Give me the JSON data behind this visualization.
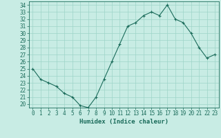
{
  "x": [
    0,
    1,
    2,
    3,
    4,
    5,
    6,
    7,
    8,
    9,
    10,
    11,
    12,
    13,
    14,
    15,
    16,
    17,
    18,
    19,
    20,
    21,
    22,
    23
  ],
  "y": [
    25.0,
    23.5,
    23.0,
    22.5,
    21.5,
    21.0,
    19.8,
    19.5,
    21.0,
    23.5,
    26.0,
    28.5,
    31.0,
    31.5,
    32.5,
    33.0,
    32.5,
    34.0,
    32.0,
    31.5,
    30.0,
    28.0,
    26.5,
    27.0
  ],
  "xlabel": "Humidex (Indice chaleur)",
  "xlim": [
    -0.5,
    23.5
  ],
  "ylim": [
    19.5,
    34.5
  ],
  "yticks": [
    20,
    21,
    22,
    23,
    24,
    25,
    26,
    27,
    28,
    29,
    30,
    31,
    32,
    33,
    34
  ],
  "xticks": [
    0,
    1,
    2,
    3,
    4,
    5,
    6,
    7,
    8,
    9,
    10,
    11,
    12,
    13,
    14,
    15,
    16,
    17,
    18,
    19,
    20,
    21,
    22,
    23
  ],
  "line_color": "#1a6b5a",
  "bg_color": "#c8ece4",
  "grid_color": "#9dd4c8",
  "axis_color": "#1a6b5a",
  "font_size": 5.5,
  "xlabel_font_size": 6.5
}
